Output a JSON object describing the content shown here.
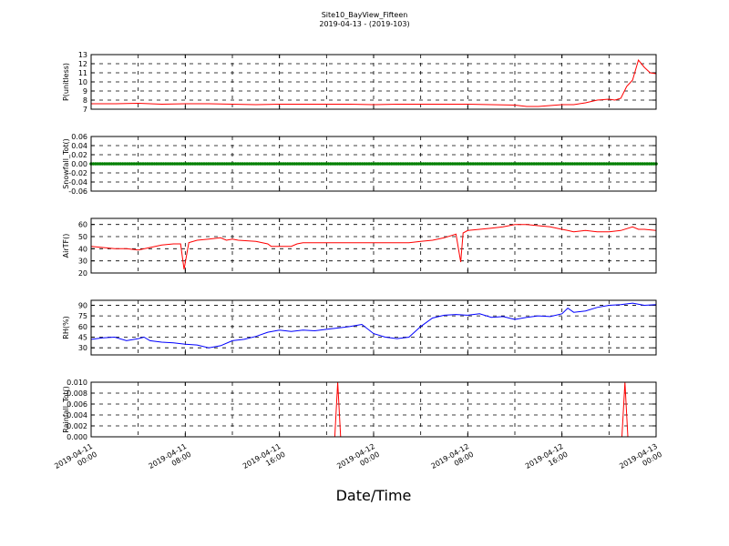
{
  "figure": {
    "title_line1": "Site10_BayView_Fifteen",
    "title_line2": "2019-04-13 - (2019-103)",
    "xlabel": "Date/Time"
  },
  "chart_data": [
    {
      "type": "line",
      "ylabel": "P(unitless)",
      "color": "#ff0000",
      "xlim": [
        0,
        48
      ],
      "ylim": [
        7,
        13
      ],
      "yticks": [
        "7",
        "8",
        "9",
        "10",
        "11",
        "12",
        "13"
      ],
      "x": [
        0,
        2,
        4,
        6,
        8,
        10,
        12,
        14,
        16,
        18,
        20,
        22,
        24,
        26,
        28,
        30,
        32,
        34,
        36,
        37,
        38,
        40,
        41,
        42,
        43,
        44,
        44.5,
        45,
        45.5,
        46,
        46.5,
        47,
        47.5,
        48
      ],
      "values": [
        7.6,
        7.6,
        7.65,
        7.55,
        7.6,
        7.6,
        7.55,
        7.5,
        7.55,
        7.55,
        7.55,
        7.55,
        7.5,
        7.55,
        7.55,
        7.55,
        7.55,
        7.5,
        7.45,
        7.3,
        7.3,
        7.5,
        7.5,
        7.7,
        8.0,
        8.1,
        8.0,
        8.2,
        9.5,
        10.2,
        12.4,
        11.6,
        11.0,
        10.9
      ]
    },
    {
      "type": "scatter",
      "ylabel": "Snowfall_Tot()",
      "color": "#008000",
      "xlim": [
        0,
        48
      ],
      "ylim": [
        -0.06,
        0.06
      ],
      "yticks": [
        "-0.06",
        "-0.04",
        "-0.02",
        "0.00",
        "0.02",
        "0.04",
        "0.06"
      ],
      "constant_value": 0.0
    },
    {
      "type": "line",
      "ylabel": "AirTF()",
      "color": "#ff0000",
      "xlim": [
        0,
        48
      ],
      "ylim": [
        20,
        65
      ],
      "yticks": [
        "20",
        "30",
        "40",
        "50",
        "60"
      ],
      "x": [
        0,
        2,
        3,
        4,
        5,
        6,
        7,
        7.6,
        7.9,
        8.3,
        9,
        10,
        11,
        11.5,
        12,
        12.5,
        14,
        15,
        15.3,
        16,
        17,
        17.5,
        18,
        20,
        22,
        24,
        26,
        27,
        28,
        29,
        30,
        31,
        31.4,
        31.6,
        32,
        33,
        34,
        35,
        36,
        37,
        38,
        39,
        40,
        40.5,
        41,
        42,
        43,
        44,
        45,
        46,
        46.5,
        47,
        48
      ],
      "values": [
        42,
        40,
        40,
        39,
        41,
        43,
        44,
        44,
        23,
        45,
        47,
        48,
        49,
        47,
        48,
        47,
        46,
        44,
        42,
        42,
        42,
        44,
        45,
        45,
        45,
        45,
        45,
        45,
        46,
        47,
        49,
        52,
        29,
        53,
        55,
        56,
        57,
        58,
        60,
        60,
        59,
        58,
        56,
        55,
        54,
        55,
        54,
        54,
        55,
        58,
        56,
        56,
        55
      ]
    },
    {
      "type": "line",
      "ylabel": "RH(%)",
      "color": "#0000ff",
      "xlim": [
        0,
        48
      ],
      "ylim": [
        20,
        97
      ],
      "yticks": [
        "30",
        "45",
        "60",
        "75",
        "90"
      ],
      "x": [
        0,
        1,
        2,
        3,
        4,
        4.5,
        5,
        6,
        7,
        8,
        9,
        10,
        11,
        12,
        13,
        14,
        15,
        16,
        17,
        18,
        19,
        20,
        21,
        22,
        23,
        24,
        25,
        26,
        27,
        28,
        29,
        30,
        31,
        32,
        33,
        34,
        35,
        36,
        37,
        38,
        39,
        40,
        40.5,
        41,
        42,
        43,
        44,
        45,
        46,
        47,
        48
      ],
      "values": [
        42,
        44,
        45,
        40,
        43,
        45,
        40,
        38,
        37,
        35,
        34,
        30,
        33,
        40,
        42,
        46,
        52,
        55,
        53,
        55,
        54,
        56,
        58,
        60,
        63,
        50,
        45,
        43,
        45,
        60,
        72,
        76,
        77,
        76,
        78,
        73,
        74,
        70,
        73,
        75,
        74,
        78,
        86,
        80,
        82,
        87,
        90,
        91,
        93,
        90,
        91
      ]
    },
    {
      "type": "line",
      "ylabel": "Rainfall_Tot()",
      "color": "#ff0000",
      "xlim": [
        0,
        48
      ],
      "ylim": [
        0,
        0.01
      ],
      "yticks": [
        "0.000",
        "0.002",
        "0.004",
        "0.006",
        "0.008",
        "0.010"
      ],
      "x": [
        0,
        20.7,
        20.95,
        21.2,
        45.1,
        45.35,
        45.6,
        48
      ],
      "values": [
        0,
        0,
        0.01,
        0,
        0,
        0.01,
        0,
        0
      ]
    }
  ],
  "x_axis": {
    "tick_labels": [
      {
        "line1": "2019-04-11",
        "line2": "00:00"
      },
      {
        "line1": "2019-04-11",
        "line2": "08:00"
      },
      {
        "line1": "2019-04-11",
        "line2": "16:00"
      },
      {
        "line1": "2019-04-12",
        "line2": "00:00"
      },
      {
        "line1": "2019-04-12",
        "line2": "08:00"
      },
      {
        "line1": "2019-04-12",
        "line2": "16:00"
      },
      {
        "line1": "2019-04-13",
        "line2": "00:00"
      }
    ]
  }
}
